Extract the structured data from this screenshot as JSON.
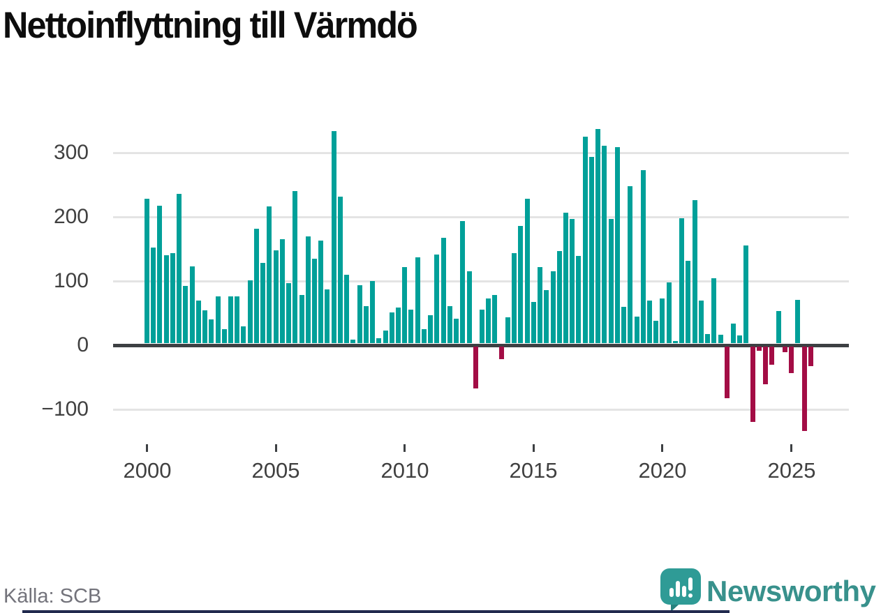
{
  "chart_data": {
    "type": "bar",
    "title": "Nettoinflyttning till Värmdö",
    "start_year": 2000,
    "frequency": "quarterly",
    "values": [
      225,
      149,
      214,
      137,
      140,
      233,
      89,
      120,
      66,
      51,
      37,
      73,
      22,
      73,
      73,
      26,
      98,
      178,
      125,
      213,
      145,
      162,
      93,
      237,
      75,
      166,
      132,
      160,
      84,
      330,
      228,
      107,
      5,
      90,
      58,
      97,
      8,
      20,
      48,
      55,
      118,
      52,
      134,
      22,
      43,
      138,
      164,
      58,
      38,
      190,
      112,
      -65,
      52,
      70,
      75,
      -20,
      40,
      140,
      183,
      225,
      64,
      119,
      83,
      112,
      143,
      203,
      193,
      136,
      322,
      290,
      334,
      308,
      193,
      305,
      56,
      245,
      41,
      270,
      66,
      35,
      70,
      95,
      3,
      195,
      128,
      223,
      66,
      14,
      101,
      13,
      -80,
      30,
      12,
      152,
      -117,
      -6,
      -59,
      -28,
      50,
      -9,
      -41,
      67,
      -132,
      -30
    ],
    "x_tick_labels": [
      "2000",
      "2005",
      "2010",
      "2015",
      "2020",
      "2025"
    ],
    "y_ticks": [
      300,
      200,
      100,
      0,
      -100
    ],
    "y_tick_labels": [
      "300",
      "200",
      "100",
      "0",
      "−100"
    ],
    "ylim": [
      -140,
      350
    ],
    "grid": "horizontal",
    "legend": "none",
    "positive_color": "#00a099",
    "negative_color": "#a30d45"
  },
  "footer": {
    "source": "Källa: SCB",
    "brand": "Newsworthy"
  }
}
